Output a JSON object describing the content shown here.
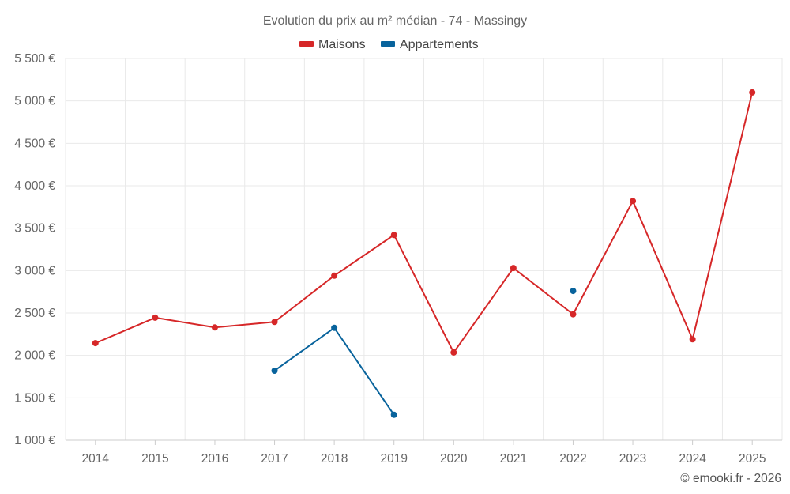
{
  "chart_data": {
    "type": "line",
    "title": "Evolution du prix au m² médian - 74 - Massingy",
    "xlabel": "",
    "ylabel": "",
    "categories": [
      "2014",
      "2015",
      "2016",
      "2017",
      "2018",
      "2019",
      "2020",
      "2021",
      "2022",
      "2023",
      "2024",
      "2025"
    ],
    "ylim": [
      1000,
      5500
    ],
    "yticks": [
      1000,
      1500,
      2000,
      2500,
      3000,
      3500,
      4000,
      4500,
      5000,
      5500
    ],
    "ytick_labels": [
      "1 000 €",
      "1 500 €",
      "2 000 €",
      "2 500 €",
      "3 000 €",
      "3 500 €",
      "4 000 €",
      "4 500 €",
      "5 000 €",
      "5 500 €"
    ],
    "grid": true,
    "legend_position": "top-center",
    "series": [
      {
        "name": "Maisons",
        "color": "#d62728",
        "values": [
          2145,
          2445,
          2330,
          2395,
          2940,
          3420,
          2035,
          3030,
          2485,
          3820,
          2190,
          5100
        ]
      },
      {
        "name": "Appartements",
        "color": "#08639c",
        "values": [
          null,
          null,
          null,
          1820,
          2325,
          1300,
          null,
          null,
          2760,
          null,
          null,
          null
        ]
      }
    ],
    "credit": "© emooki.fr - 2026"
  }
}
